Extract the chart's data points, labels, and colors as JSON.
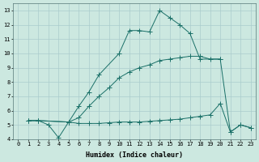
{
  "xlabel": "Humidex (Indice chaleur)",
  "bg_color": "#cce8e0",
  "grid_color": "#aacccc",
  "line_color": "#1a7068",
  "xlim": [
    -0.5,
    23.5
  ],
  "ylim": [
    4,
    13.5
  ],
  "yticks": [
    4,
    5,
    6,
    7,
    8,
    9,
    10,
    11,
    12,
    13
  ],
  "xticks": [
    0,
    1,
    2,
    3,
    4,
    5,
    6,
    7,
    8,
    9,
    10,
    11,
    12,
    13,
    14,
    15,
    16,
    17,
    18,
    19,
    20,
    21,
    22,
    23
  ],
  "line1_x": [
    1,
    2,
    5,
    6,
    7,
    8,
    10,
    11,
    12,
    13,
    14,
    15,
    16,
    17,
    18,
    20
  ],
  "line1_y": [
    5.3,
    5.3,
    5.2,
    6.3,
    7.3,
    8.5,
    10.0,
    11.6,
    11.6,
    11.5,
    13.0,
    12.5,
    12.0,
    11.4,
    9.6,
    9.6
  ],
  "line2_x": [
    1,
    2,
    3,
    4,
    5,
    6,
    7,
    8,
    9,
    10,
    11,
    12,
    13,
    14,
    15,
    16,
    17,
    18,
    19,
    20,
    21,
    22,
    23
  ],
  "line2_y": [
    5.3,
    5.3,
    5.0,
    4.1,
    5.2,
    5.1,
    5.1,
    5.1,
    5.15,
    5.2,
    5.2,
    5.2,
    5.25,
    5.3,
    5.35,
    5.4,
    5.5,
    5.6,
    5.7,
    6.5,
    4.5,
    5.0,
    4.8
  ],
  "line3_x": [
    1,
    2,
    5,
    6,
    7,
    8,
    9,
    10,
    11,
    12,
    13,
    14,
    15,
    16,
    17,
    18,
    19,
    20,
    21,
    22,
    23
  ],
  "line3_y": [
    5.3,
    5.3,
    5.2,
    5.5,
    6.3,
    7.0,
    7.6,
    8.3,
    8.7,
    9.0,
    9.2,
    9.5,
    9.6,
    9.7,
    9.8,
    9.8,
    9.6,
    9.6,
    4.5,
    5.0,
    4.8
  ],
  "marker_size": 2.0,
  "line_width": 0.7
}
